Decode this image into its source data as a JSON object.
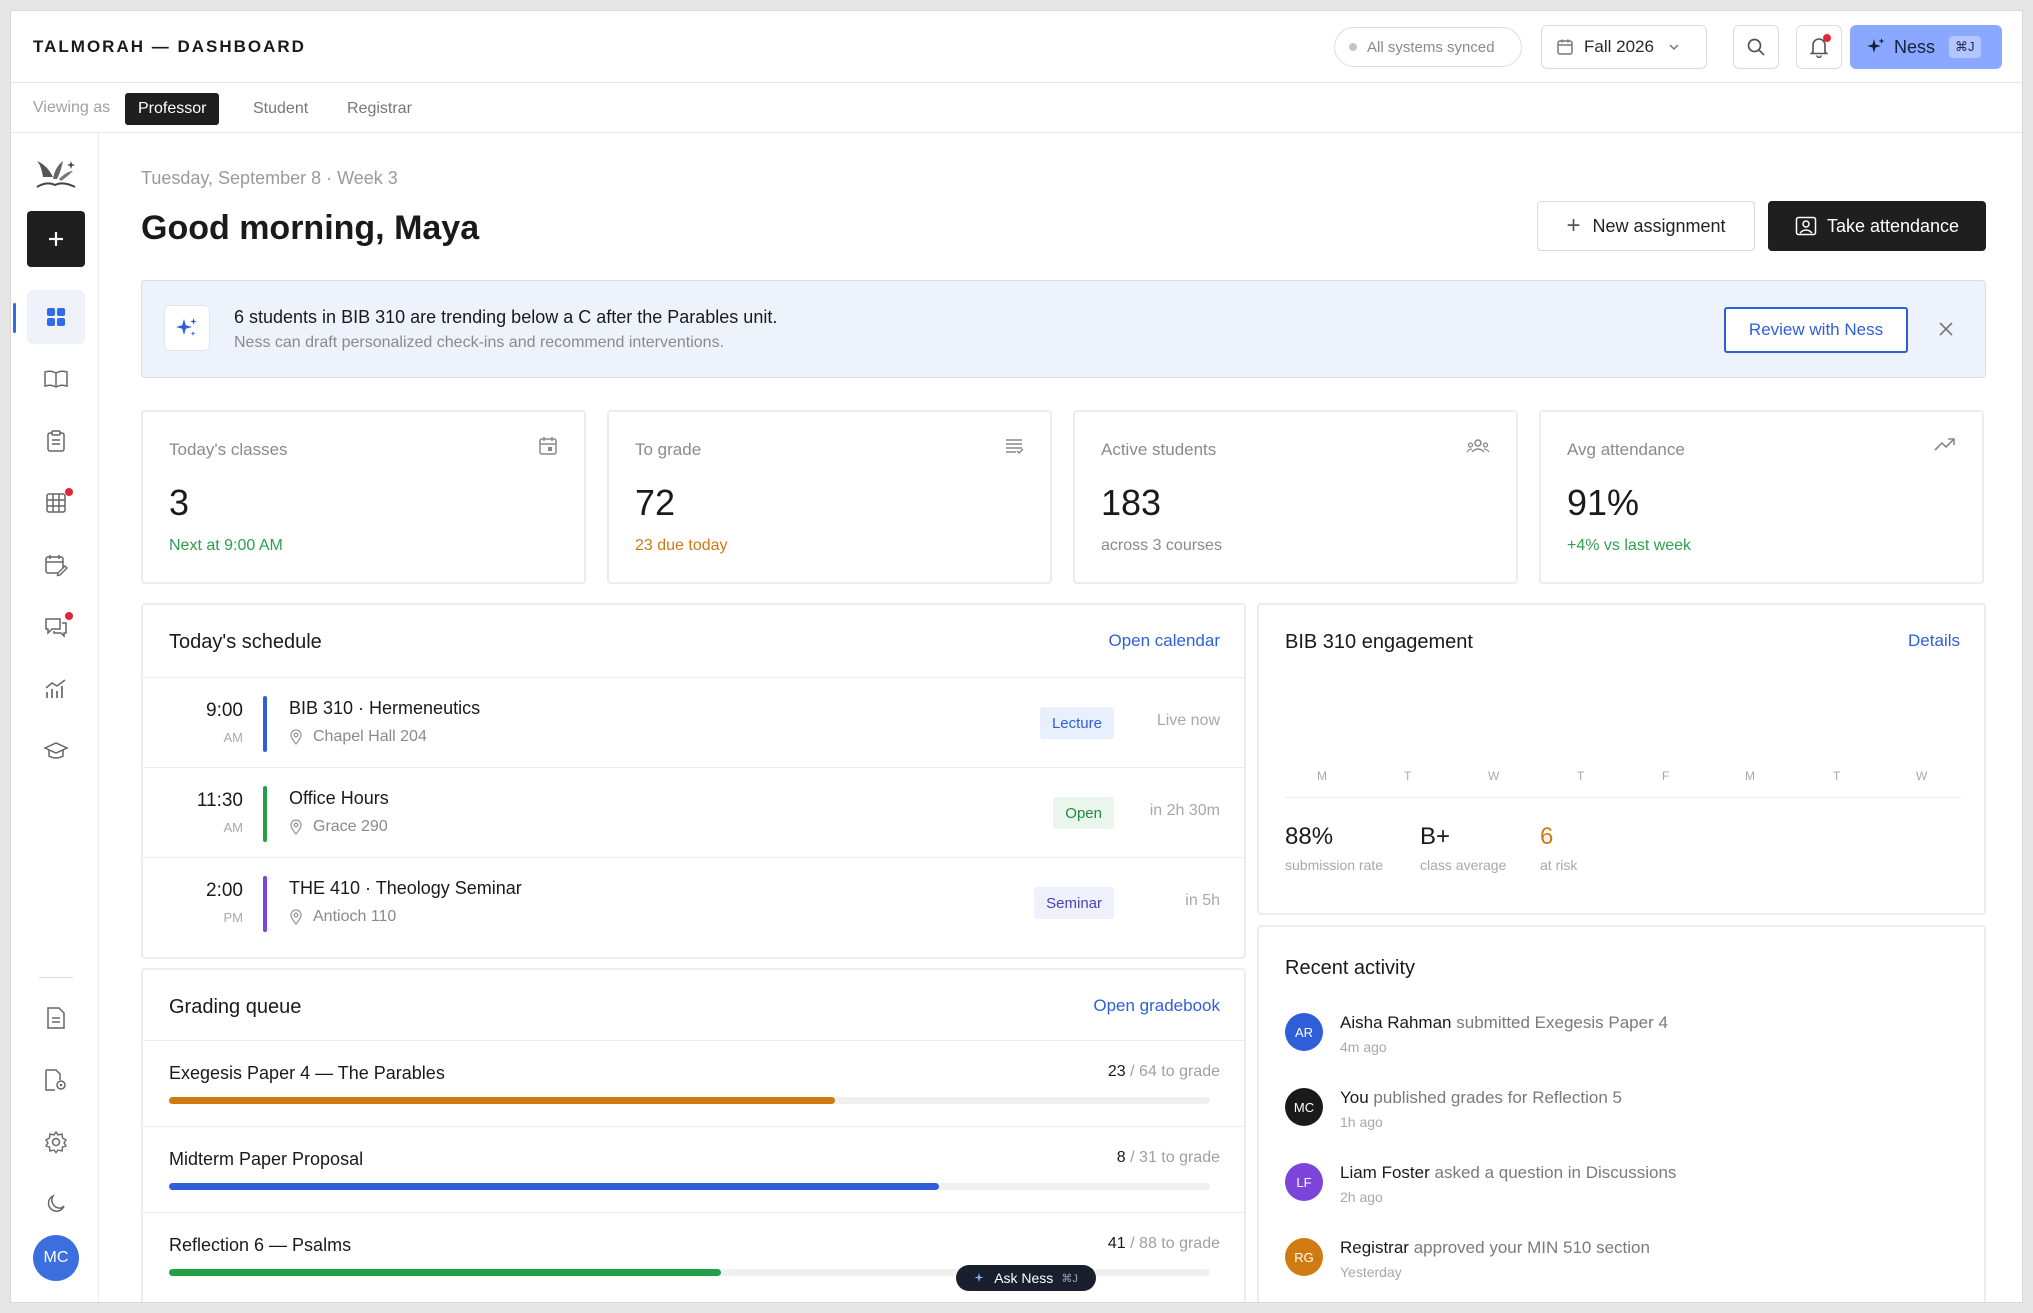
{
  "app": {
    "title": "TALMORAH — DASHBOARD"
  },
  "topbar": {
    "sync_status": "All systems synced",
    "term": "Fall 2026",
    "ness_label": "Ness",
    "ness_shortcut": "⌘J"
  },
  "roles": {
    "label": "Viewing as",
    "tabs": [
      {
        "label": "Professor",
        "active": true
      },
      {
        "label": "Student",
        "active": false
      },
      {
        "label": "Registrar",
        "active": false
      }
    ]
  },
  "sidebar": {
    "icons": [
      "dashboard-icon",
      "courses-icon",
      "assignments-icon",
      "gradebook-icon",
      "attendance-icon",
      "discussions-icon",
      "analytics-icon",
      "graduation-icon"
    ],
    "bottom_icons": [
      "document-icon",
      "file-settings-icon",
      "settings-icon",
      "dark-mode-icon"
    ],
    "avatar_initials": "MC",
    "notification_color": "#e5243b"
  },
  "header": {
    "date": "Tuesday, September 8 · Week 3",
    "greeting": "Good morning, Maya",
    "new_assignment": "New assignment",
    "take_attendance": "Take attendance"
  },
  "alert": {
    "title": "6 students in BIB 310 are trending below a C after the Parables unit.",
    "subtitle": "Ness can draft personalized check-ins and recommend interventions.",
    "action": "Review with Ness"
  },
  "stats": [
    {
      "label": "Today's classes",
      "value": "3",
      "sub": "Next at 9:00 AM",
      "sub_color": "#2e9e4f",
      "icon": "calendar-icon"
    },
    {
      "label": "To grade",
      "value": "72",
      "sub": "23 due today",
      "sub_color": "#d07a12",
      "icon": "list-icon"
    },
    {
      "label": "Active students",
      "value": "183",
      "sub": "across 3 courses",
      "sub_color": "#8a8a8a",
      "icon": "people-icon"
    },
    {
      "label": "Avg attendance",
      "value": "91%",
      "sub": "+4% vs last week",
      "sub_color": "#2e9e4f",
      "icon": "trend-up-icon"
    }
  ],
  "schedule": {
    "title": "Today's schedule",
    "link": "Open calendar",
    "items": [
      {
        "time": "9:00",
        "ampm": "AM",
        "name": "BIB 310 · Hermeneutics",
        "location": "Chapel Hall 204",
        "tag": "Lecture",
        "status": "Live now",
        "color": "#2f5ed8"
      },
      {
        "time": "11:30",
        "ampm": "AM",
        "name": "Office Hours",
        "location": "Grace 290",
        "tag": "Open",
        "status": "in 2h 30m",
        "color": "#23a047"
      },
      {
        "time": "2:00",
        "ampm": "PM",
        "name": "THE 410 · Theology Seminar",
        "location": "Antioch 110",
        "tag": "Seminar",
        "status": "in 5h",
        "color": "#7c44d8"
      }
    ]
  },
  "grading": {
    "title": "Grading queue",
    "link": "Open gradebook",
    "suffix": "/ 64 to grade",
    "items": [
      {
        "name": "Exegesis Paper 4 — The Parables",
        "done": "23",
        "total_text": "/ 64 to grade",
        "progress": 0.64,
        "color": "#d07a12"
      },
      {
        "name": "Midterm Paper Proposal",
        "done": "8",
        "total_text": "/ 31 to grade",
        "progress": 0.74,
        "color": "#2f5ed8"
      },
      {
        "name": "Reflection 6 — Psalms",
        "done": "41",
        "total_text": "/ 88 to grade",
        "progress": 0.53,
        "color": "#23a047"
      }
    ]
  },
  "engagement": {
    "title": "BIB 310 engagement",
    "link": "Details",
    "days": [
      "M",
      "T",
      "W",
      "T",
      "F",
      "M",
      "T",
      "W"
    ],
    "metrics": [
      {
        "value": "88%",
        "label": "submission rate",
        "color": "#1a1a1a"
      },
      {
        "value": "B+",
        "label": "class average",
        "color": "#1a1a1a"
      },
      {
        "value": "6",
        "label": "at risk",
        "color": "#d07a12"
      }
    ]
  },
  "activity": {
    "title": "Recent activity",
    "items": [
      {
        "initials": "AR",
        "name": "Aisha Rahman",
        "action": "submitted Exegesis Paper 4",
        "time": "4m ago",
        "color": "#2f5ed8"
      },
      {
        "initials": "MC",
        "name": "You",
        "action": "published grades for Reflection 5",
        "time": "1h ago",
        "color": "#1a1a1a"
      },
      {
        "initials": "LF",
        "name": "Liam Foster",
        "action": "asked a question in Discussions",
        "time": "2h ago",
        "color": "#7c44d8"
      },
      {
        "initials": "RG",
        "name": "Registrar",
        "action": "approved your MIN 510 section",
        "time": "Yesterday",
        "color": "#d07a12"
      }
    ]
  },
  "ask_ness": {
    "label": "Ask Ness",
    "shortcut": "⌘J"
  }
}
